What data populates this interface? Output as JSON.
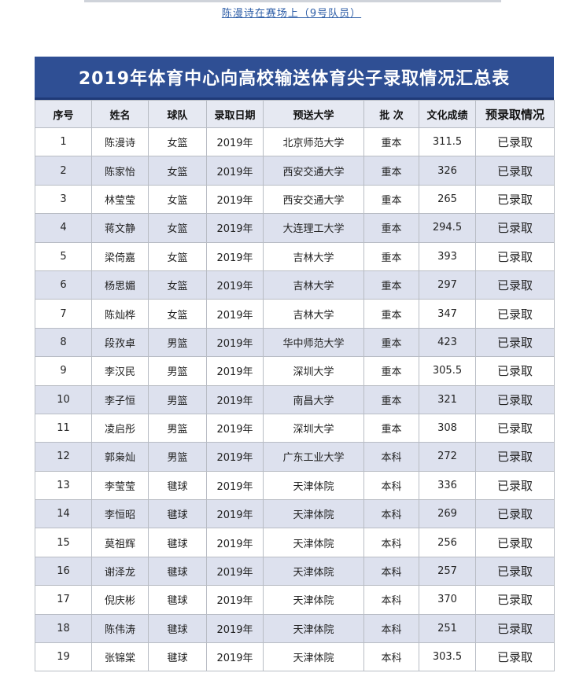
{
  "caption": "陈漫诗在赛场上（9号队员）",
  "table": {
    "title": "2019年体育中心向高校输送体育尖子录取情况汇总表",
    "headers": [
      "序号",
      "姓名",
      "球队",
      "录取日期",
      "预送大学",
      "批 次",
      "文化成绩",
      "预录取情况"
    ],
    "rows": [
      [
        "1",
        "陈漫诗",
        "女篮",
        "2019年",
        "北京师范大学",
        "重本",
        "311.5",
        "已录取"
      ],
      [
        "2",
        "陈家怡",
        "女篮",
        "2019年",
        "西安交通大学",
        "重本",
        "326",
        "已录取"
      ],
      [
        "3",
        "林莹莹",
        "女篮",
        "2019年",
        "西安交通大学",
        "重本",
        "265",
        "已录取"
      ],
      [
        "4",
        "蒋文静",
        "女篮",
        "2019年",
        "大连理工大学",
        "重本",
        "294.5",
        "已录取"
      ],
      [
        "5",
        "梁倚嘉",
        "女篮",
        "2019年",
        "吉林大学",
        "重本",
        "393",
        "已录取"
      ],
      [
        "6",
        "杨思媚",
        "女篮",
        "2019年",
        "吉林大学",
        "重本",
        "297",
        "已录取"
      ],
      [
        "7",
        "陈灿桦",
        "女篮",
        "2019年",
        "吉林大学",
        "重本",
        "347",
        "已录取"
      ],
      [
        "8",
        "段孜卓",
        "男篮",
        "2019年",
        "华中师范大学",
        "重本",
        "423",
        "已录取"
      ],
      [
        "9",
        "李汉民",
        "男篮",
        "2019年",
        "深圳大学",
        "重本",
        "305.5",
        "已录取"
      ],
      [
        "10",
        "李子恒",
        "男篮",
        "2019年",
        "南昌大学",
        "重本",
        "321",
        "已录取"
      ],
      [
        "11",
        "凌启彤",
        "男篮",
        "2019年",
        "深圳大学",
        "重本",
        "308",
        "已录取"
      ],
      [
        "12",
        "郭枭灿",
        "男篮",
        "2019年",
        "广东工业大学",
        "本科",
        "272",
        "已录取"
      ],
      [
        "13",
        "李莹莹",
        "毽球",
        "2019年",
        "天津体院",
        "本科",
        "336",
        "已录取"
      ],
      [
        "14",
        "李恒昭",
        "毽球",
        "2019年",
        "天津体院",
        "本科",
        "269",
        "已录取"
      ],
      [
        "15",
        "莫祖辉",
        "毽球",
        "2019年",
        "天津体院",
        "本科",
        "256",
        "已录取"
      ],
      [
        "16",
        "谢泽龙",
        "毽球",
        "2019年",
        "天津体院",
        "本科",
        "257",
        "已录取"
      ],
      [
        "17",
        "倪庆彬",
        "毽球",
        "2019年",
        "天津体院",
        "本科",
        "370",
        "已录取"
      ],
      [
        "18",
        "陈伟涛",
        "毽球",
        "2019年",
        "天津体院",
        "本科",
        "251",
        "已录取"
      ],
      [
        "19",
        "张锦棠",
        "毽球",
        "2019年",
        "天津体院",
        "本科",
        "303.5",
        "已录取"
      ]
    ]
  }
}
